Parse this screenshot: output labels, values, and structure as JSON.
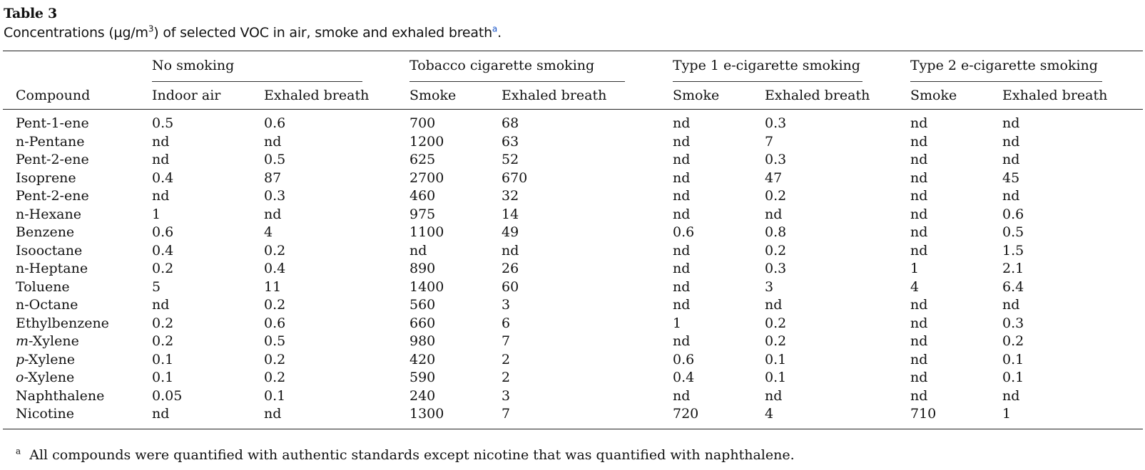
{
  "table_label": "Table 3",
  "caption": {
    "prefix": "Concentrations (µg/m",
    "superscript": "3",
    "suffix": ") of selected VOC in air, smoke and exhaled breath",
    "note_marker": "a",
    "end": "."
  },
  "groups": [
    "No smoking",
    "Tobacco cigarette smoking",
    "Type 1 e-cigarette smoking",
    "Type 2 e-cigarette smoking"
  ],
  "columns": [
    "Compound",
    "Indoor air",
    "Exhaled breath",
    "Smoke",
    "Exhaled breath",
    "Smoke",
    "Exhaled breath",
    "Smoke",
    "Exhaled breath"
  ],
  "rows": [
    {
      "prefix": "",
      "name": "Pent-1-ene",
      "values": [
        "0.5",
        "0.6",
        "700",
        "68",
        "nd",
        "0.3",
        "nd",
        "nd"
      ]
    },
    {
      "prefix": "",
      "name": "n-Pentane",
      "values": [
        "nd",
        "nd",
        "1200",
        "63",
        "nd",
        "7",
        "nd",
        "nd"
      ]
    },
    {
      "prefix": "",
      "name": "Pent-2-ene",
      "values": [
        "nd",
        "0.5",
        "625",
        "52",
        "nd",
        "0.3",
        "nd",
        "nd"
      ]
    },
    {
      "prefix": "",
      "name": "Isoprene",
      "values": [
        "0.4",
        "87",
        "2700",
        "670",
        "nd",
        "47",
        "nd",
        "45"
      ]
    },
    {
      "prefix": "",
      "name": "Pent-2-ene",
      "values": [
        "nd",
        "0.3",
        "460",
        "32",
        "nd",
        "0.2",
        "nd",
        "nd"
      ]
    },
    {
      "prefix": "",
      "name": "n-Hexane",
      "values": [
        "1",
        "nd",
        "975",
        "14",
        "nd",
        "nd",
        "nd",
        "0.6"
      ]
    },
    {
      "prefix": "",
      "name": "Benzene",
      "values": [
        "0.6",
        "4",
        "1100",
        "49",
        "0.6",
        "0.8",
        "nd",
        "0.5"
      ]
    },
    {
      "prefix": "",
      "name": "Isooctane",
      "values": [
        "0.4",
        "0.2",
        "nd",
        "nd",
        "nd",
        "0.2",
        "nd",
        "1.5"
      ]
    },
    {
      "prefix": "",
      "name": "n-Heptane",
      "values": [
        "0.2",
        "0.4",
        "890",
        "26",
        "nd",
        "0.3",
        "1",
        "2.1"
      ]
    },
    {
      "prefix": "",
      "name": "Toluene",
      "values": [
        "5",
        "11",
        "1400",
        "60",
        "nd",
        "3",
        "4",
        "6.4"
      ]
    },
    {
      "prefix": "",
      "name": "n-Octane",
      "values": [
        "nd",
        "0.2",
        "560",
        "3",
        "nd",
        "nd",
        "nd",
        "nd"
      ]
    },
    {
      "prefix": "",
      "name": "Ethylbenzene",
      "values": [
        "0.2",
        "0.6",
        "660",
        "6",
        "1",
        "0.2",
        "nd",
        "0.3"
      ]
    },
    {
      "prefix": "m",
      "name": "-Xylene",
      "values": [
        "0.2",
        "0.5",
        "980",
        "7",
        "nd",
        "0.2",
        "nd",
        "0.2"
      ]
    },
    {
      "prefix": "p",
      "name": "-Xylene",
      "values": [
        "0.1",
        "0.2",
        "420",
        "2",
        "0.6",
        "0.1",
        "nd",
        "0.1"
      ]
    },
    {
      "prefix": "o",
      "name": "-Xylene",
      "values": [
        "0.1",
        "0.2",
        "590",
        "2",
        "0.4",
        "0.1",
        "nd",
        "0.1"
      ]
    },
    {
      "prefix": "",
      "name": "Naphthalene",
      "values": [
        "0.05",
        "0.1",
        "240",
        "3",
        "nd",
        "nd",
        "nd",
        "nd"
      ]
    },
    {
      "prefix": "",
      "name": "Nicotine",
      "values": [
        "nd",
        "nd",
        "1300",
        "7",
        "720",
        "4",
        "710",
        "1"
      ]
    }
  ],
  "footnote": {
    "marker": "a",
    "text": "All compounds were quantified with authentic standards except nicotine that was quantified with naphthalene."
  }
}
